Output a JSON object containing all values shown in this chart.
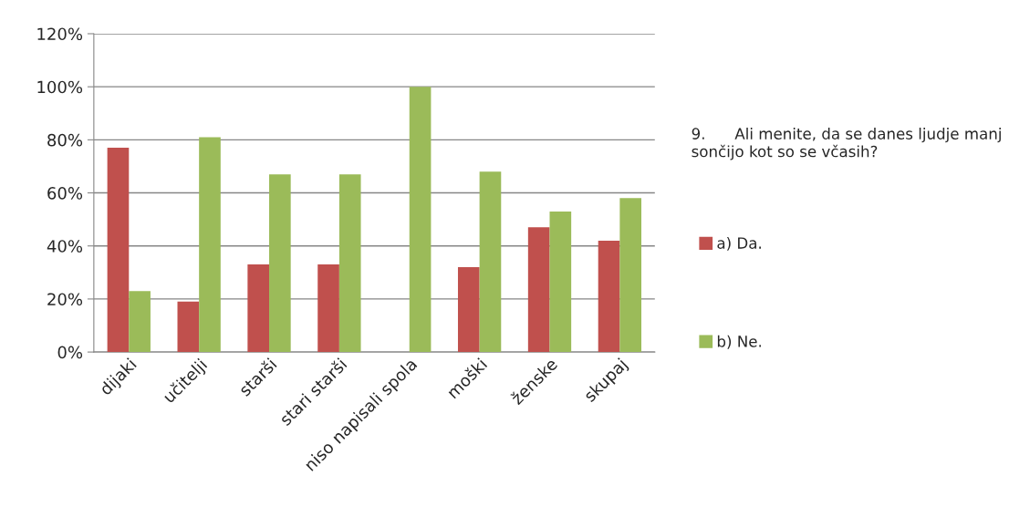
{
  "chart_data": {
    "type": "bar",
    "categories": [
      "dijaki",
      "učitelji",
      "starši",
      "stari starši",
      "niso napisali spola",
      "moški",
      "ženske",
      "skupaj"
    ],
    "series": [
      {
        "name": "a) Da.",
        "color": "#c0504d",
        "values": [
          77,
          19,
          33,
          33,
          0,
          32,
          47,
          42
        ]
      },
      {
        "name": "b) Ne.",
        "color": "#9bbb59",
        "values": [
          23,
          81,
          67,
          67,
          100,
          68,
          53,
          58
        ]
      }
    ],
    "legend_title": "9.      Ali menite, da se danes ljudje manj sončijo kot so se včasih?",
    "ylim": [
      0,
      120
    ],
    "yticks": [
      {
        "value": 0,
        "label": "0%"
      },
      {
        "value": 20,
        "label": "20%"
      },
      {
        "value": 40,
        "label": "40%"
      },
      {
        "value": 60,
        "label": "60%"
      },
      {
        "value": 80,
        "label": "80%"
      },
      {
        "value": 100,
        "label": "100%"
      },
      {
        "value": 120,
        "label": "120%"
      }
    ],
    "grid": "y",
    "legend": "right"
  }
}
